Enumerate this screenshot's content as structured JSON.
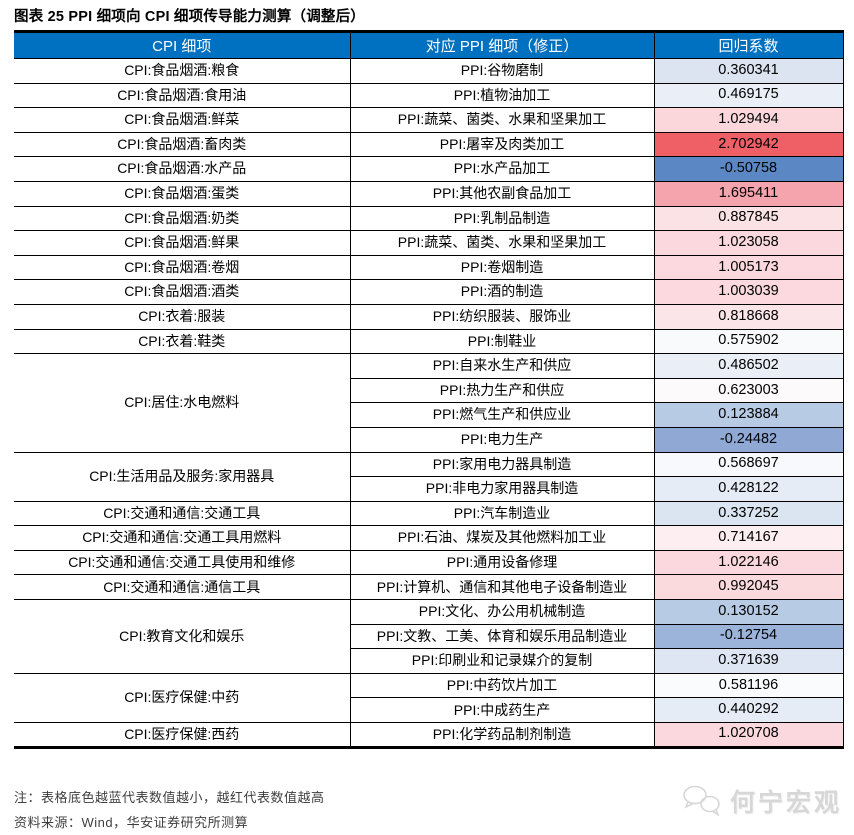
{
  "title": "图表 25 PPI 细项向 CPI 细项传导能力测算（调整后）",
  "table": {
    "header_bg": "#0070c0",
    "headers": {
      "cpi": "CPI 细项",
      "ppi": "对应 PPI 细项（修正）",
      "coef": "回归系数"
    },
    "color_scale": {
      "low": "#5b87c5",
      "mid": "#ffffff",
      "high": "#ee5f66"
    },
    "rows": [
      {
        "cpi": "CPI:食品烟酒:粮食",
        "cpi_span": 1,
        "ppi": "PPI:谷物磨制",
        "coef": "0.360341",
        "color": "#dce4f1"
      },
      {
        "cpi": "CPI:食品烟酒:食用油",
        "cpi_span": 1,
        "ppi": "PPI:植物油加工",
        "coef": "0.469175",
        "color": "#e9eef7"
      },
      {
        "cpi": "CPI:食品烟酒:鲜菜",
        "cpi_span": 1,
        "ppi": "PPI:蔬菜、菌类、水果和坚果加工",
        "coef": "1.029494",
        "color": "#fbd7dc"
      },
      {
        "cpi": "CPI:食品烟酒:畜肉类",
        "cpi_span": 1,
        "ppi": "PPI:屠宰及肉类加工",
        "coef": "2.702942",
        "color": "#ee5f66"
      },
      {
        "cpi": "CPI:食品烟酒:水产品",
        "cpi_span": 1,
        "ppi": "PPI:水产品加工",
        "coef": "-0.50758",
        "color": "#5b87c5"
      },
      {
        "cpi": "CPI:食品烟酒:蛋类",
        "cpi_span": 1,
        "ppi": "PPI:其他农副食品加工",
        "coef": "1.695411",
        "color": "#f5a3ac"
      },
      {
        "cpi": "CPI:食品烟酒:奶类",
        "cpi_span": 1,
        "ppi": "PPI:乳制品制造",
        "coef": "0.887845",
        "color": "#fbe2e5"
      },
      {
        "cpi": "CPI:食品烟酒:鲜果",
        "cpi_span": 1,
        "ppi": "PPI:蔬菜、菌类、水果和坚果加工",
        "coef": "1.023058",
        "color": "#fbd8dd"
      },
      {
        "cpi": "CPI:食品烟酒:卷烟",
        "cpi_span": 1,
        "ppi": "PPI:卷烟制造",
        "coef": "1.005173",
        "color": "#fbd9de"
      },
      {
        "cpi": "CPI:食品烟酒:酒类",
        "cpi_span": 1,
        "ppi": "PPI:酒的制造",
        "coef": "1.003039",
        "color": "#fbd9de"
      },
      {
        "cpi": "CPI:衣着:服装",
        "cpi_span": 1,
        "ppi": "PPI:纺织服装、服饰业",
        "coef": "0.818668",
        "color": "#fbe5e8"
      },
      {
        "cpi": "CPI:衣着:鞋类",
        "cpi_span": 1,
        "ppi": "PPI:制鞋业",
        "coef": "0.575902",
        "color": "#f8fafc"
      },
      {
        "cpi": "CPI:居住:水电燃料",
        "cpi_span": 4,
        "ppi": "PPI:自来水生产和供应",
        "coef": "0.486502",
        "color": "#eaeff7"
      },
      {
        "cpi": null,
        "cpi_span": 0,
        "ppi": "PPI:热力生产和供应",
        "coef": "0.623003",
        "color": "#fdfafb"
      },
      {
        "cpi": null,
        "cpi_span": 0,
        "ppi": "PPI:燃气生产和供应业",
        "coef": "0.123884",
        "color": "#b7cbe5"
      },
      {
        "cpi": null,
        "cpi_span": 0,
        "ppi": "PPI:电力生产",
        "coef": "-0.24482",
        "color": "#8fa9d4"
      },
      {
        "cpi": "CPI:生活用品及服务:家用器具",
        "cpi_span": 2,
        "ppi": "PPI:家用电力器具制造",
        "coef": "0.568697",
        "color": "#f7f9fc"
      },
      {
        "cpi": null,
        "cpi_span": 0,
        "ppi": "PPI:非电力家用器具制造",
        "coef": "0.428122",
        "color": "#e5ecf5"
      },
      {
        "cpi": "CPI:交通和通信:交通工具",
        "cpi_span": 1,
        "ppi": "PPI:汽车制造业",
        "coef": "0.337252",
        "color": "#dbe4f1"
      },
      {
        "cpi": "CPI:交通和通信:交通工具用燃料",
        "cpi_span": 1,
        "ppi": "PPI:石油、煤炭及其他燃料加工业",
        "coef": "0.714167",
        "color": "#fdeff1"
      },
      {
        "cpi": "CPI:交通和通信:交通工具使用和维修",
        "cpi_span": 1,
        "ppi": "PPI:通用设备修理",
        "coef": "1.022146",
        "color": "#fbd8dd"
      },
      {
        "cpi": "CPI:交通和通信:通信工具",
        "cpi_span": 1,
        "ppi": "PPI:计算机、通信和其他电子设备制造业",
        "coef": "0.992045",
        "color": "#fbdade"
      },
      {
        "cpi": "CPI:教育文化和娱乐",
        "cpi_span": 3,
        "ppi": "PPI:文化、办公用机械制造",
        "coef": "0.130152",
        "color": "#b7cbe5"
      },
      {
        "cpi": null,
        "cpi_span": 0,
        "ppi": "PPI:文教、工美、体育和娱乐用品制造业",
        "coef": "-0.12754",
        "color": "#9cb4da"
      },
      {
        "cpi": null,
        "cpi_span": 0,
        "ppi": "PPI:印刷业和记录媒介的复制",
        "coef": "0.371639",
        "color": "#dde6f2"
      },
      {
        "cpi": "CPI:医疗保健:中药",
        "cpi_span": 2,
        "ppi": "PPI:中药饮片加工",
        "coef": "0.581196",
        "color": "#fafbfd"
      },
      {
        "cpi": null,
        "cpi_span": 0,
        "ppi": "PPI:中成药生产",
        "coef": "0.440292",
        "color": "#e6ecf6"
      },
      {
        "cpi": "CPI:医疗保健:西药",
        "cpi_span": 1,
        "ppi": "PPI:化学药品制剂制造",
        "coef": "1.020708",
        "color": "#fbd8dd"
      }
    ]
  },
  "footer": {
    "note": "注：表格底色越蓝代表数值越小，越红代表数值越高",
    "source": "资料来源：Wind，华安证券研究所测算",
    "watermark": "何宁宏观"
  }
}
